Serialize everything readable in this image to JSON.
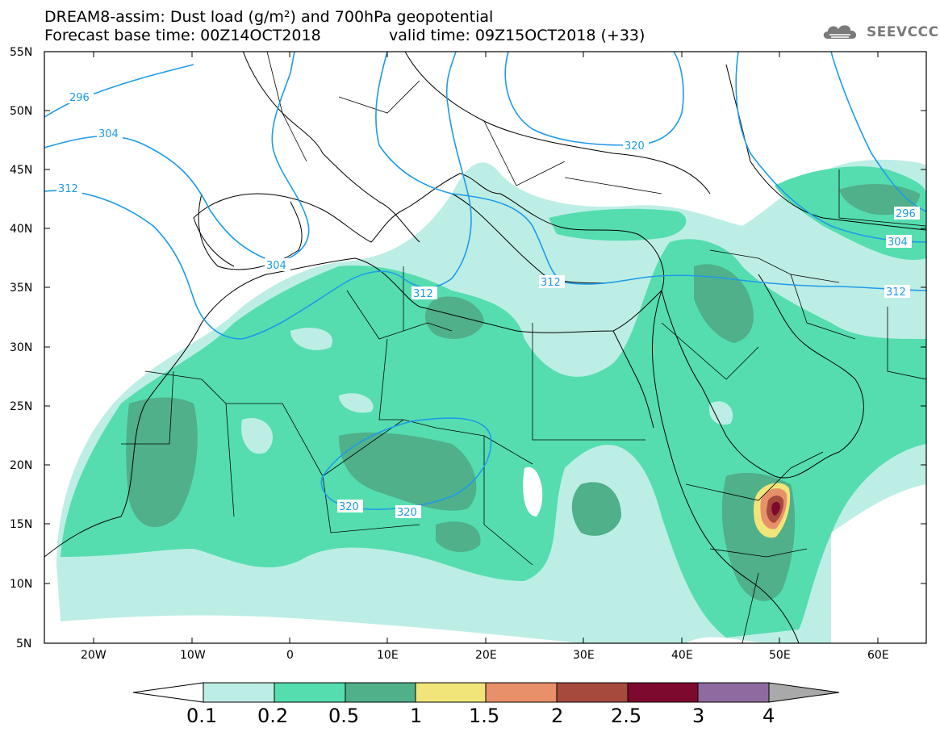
{
  "header": {
    "title_line1": "DREAM8-assim: Dust load (g/m²) and 700hPa geopotential",
    "title_line2_base": "Forecast base time: 00Z14OCT2018",
    "title_line2_valid": "valid time: 09Z15OCT2018 (+33)",
    "logo_text": "SEEVCCC",
    "logo_icon": "cloud-icon"
  },
  "map": {
    "lat_labels": [
      "55N",
      "50N",
      "45N",
      "40N",
      "35N",
      "30N",
      "25N",
      "20N",
      "15N",
      "10N",
      "5N"
    ],
    "lon_labels": [
      "20W",
      "10W",
      "0",
      "10E",
      "20E",
      "30E",
      "40E",
      "50E",
      "60E"
    ],
    "contour_labels": [
      "296",
      "304",
      "312",
      "304",
      "312",
      "312",
      "320",
      "320",
      "320",
      "296",
      "304",
      "312"
    ],
    "colors": {
      "frame": "#000000",
      "coast": "#000000",
      "contour": "#1e9be8"
    }
  },
  "colorbar": {
    "ticks": [
      "0.1",
      "0.2",
      "0.5",
      "1",
      "1.5",
      "2",
      "2.5",
      "3",
      "4"
    ],
    "colors": [
      "#ffffff",
      "#bdeee6",
      "#55ddb0",
      "#4fb08a",
      "#f1e57a",
      "#e79069",
      "#a54a3c",
      "#7d0a2e",
      "#8e6aa0",
      "#a9a9a9"
    ]
  }
}
